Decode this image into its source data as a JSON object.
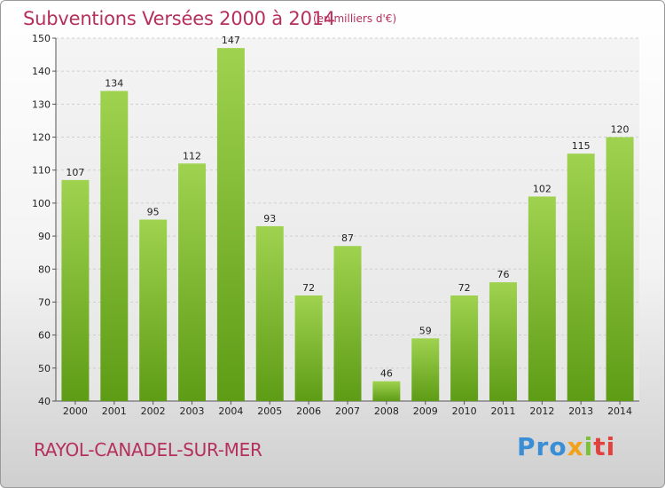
{
  "chart_data": {
    "type": "bar",
    "title": "Subventions Versées 2000 à 2014",
    "subtitle": "(en milliers d'€)",
    "categories": [
      "2000",
      "2001",
      "2002",
      "2003",
      "2004",
      "2005",
      "2006",
      "2007",
      "2008",
      "2009",
      "2010",
      "2011",
      "2012",
      "2013",
      "2014"
    ],
    "values": [
      107,
      134,
      95,
      112,
      147,
      93,
      72,
      87,
      46,
      59,
      72,
      76,
      102,
      115,
      120
    ],
    "ylim": [
      40,
      150
    ],
    "yticks": [
      40,
      50,
      60,
      70,
      80,
      90,
      100,
      110,
      120,
      130,
      140,
      150
    ],
    "grid": true,
    "bar_color": "#8cc63f"
  },
  "commune": "RAYOL-CANADEL-SUR-MER",
  "logo": {
    "p1": "Pro",
    "p2": "x",
    "p3": "i",
    "p4": "ti"
  }
}
